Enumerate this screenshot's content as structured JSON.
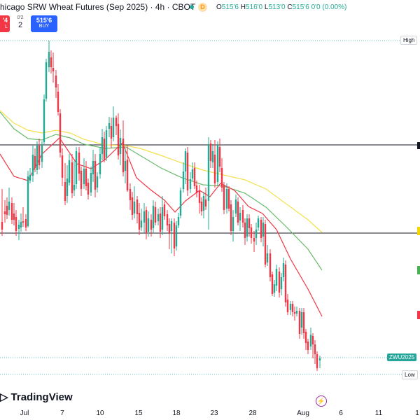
{
  "header": {
    "title": "hicago SRW Wheat Futures (Sep 2025) · 4h · CBOT",
    "d_badge": "D",
    "ohlc": {
      "o_label": "O",
      "o_value": "515'6",
      "h_label": "H",
      "h_value": "516'0",
      "l_label": "L",
      "l_value": "513'0",
      "c_label": "C",
      "c_value": "515'6",
      "change": "0'0 (0.00%)"
    }
  },
  "trade": {
    "sell_price": "'4",
    "sell_label": "L",
    "spread_top": "0'2",
    "spread_value": "2",
    "buy_price": "515'6",
    "buy_label": "BUY"
  },
  "price_labels": {
    "high": "High",
    "symbol": "ZWU2025",
    "low": "Low"
  },
  "logo": {
    "text": "TradingView"
  },
  "colors": {
    "up": "#22ab94",
    "down": "#f23645",
    "ma_red": "#f23645",
    "ma_green": "#66bb6a",
    "ma_yellow": "#f4e04d",
    "level_line": "#131722",
    "dotted": "#26a69a"
  },
  "icons": {
    "event": "lightning-icon"
  },
  "time_axis": {
    "ticks": [
      "Jul",
      "7",
      "10",
      "15",
      "18",
      "23",
      "28",
      "Aug",
      "6",
      "11",
      "1"
    ]
  },
  "chart_data": {
    "type": "candlestick",
    "ma_slow": [
      [
        0,
        158
      ],
      [
        20,
        176
      ],
      [
        40,
        186
      ],
      [
        60,
        190
      ],
      [
        80,
        186
      ],
      [
        100,
        190
      ],
      [
        120,
        199
      ],
      [
        150,
        207
      ],
      [
        180,
        208
      ],
      [
        200,
        212
      ],
      [
        230,
        222
      ],
      [
        260,
        233
      ],
      [
        290,
        243
      ],
      [
        320,
        250
      ],
      [
        350,
        257
      ],
      [
        380,
        270
      ],
      [
        410,
        292
      ],
      [
        440,
        314
      ],
      [
        460,
        332
      ]
    ],
    "ma_mid": [
      [
        0,
        160
      ],
      [
        20,
        184
      ],
      [
        40,
        198
      ],
      [
        60,
        200
      ],
      [
        80,
        192
      ],
      [
        100,
        197
      ],
      [
        120,
        206
      ],
      [
        150,
        212
      ],
      [
        180,
        210
      ],
      [
        200,
        222
      ],
      [
        230,
        240
      ],
      [
        260,
        254
      ],
      [
        290,
        264
      ],
      [
        320,
        266
      ],
      [
        350,
        276
      ],
      [
        380,
        296
      ],
      [
        410,
        325
      ],
      [
        440,
        356
      ],
      [
        460,
        386
      ]
    ],
    "ma_fast": [
      [
        0,
        220
      ],
      [
        20,
        252
      ],
      [
        40,
        258
      ],
      [
        60,
        220
      ],
      [
        85,
        197
      ],
      [
        110,
        234
      ],
      [
        130,
        241
      ],
      [
        150,
        228
      ],
      [
        175,
        204
      ],
      [
        195,
        254
      ],
      [
        215,
        271
      ],
      [
        235,
        286
      ],
      [
        250,
        303
      ],
      [
        265,
        287
      ],
      [
        285,
        272
      ],
      [
        300,
        281
      ],
      [
        315,
        262
      ],
      [
        335,
        272
      ],
      [
        355,
        295
      ],
      [
        375,
        305
      ],
      [
        395,
        328
      ],
      [
        415,
        370
      ],
      [
        440,
        413
      ],
      [
        460,
        452
      ]
    ],
    "candles": [
      [
        3,
        317,
        328,
        270,
        337
      ],
      [
        7,
        302,
        306,
        286,
        318
      ],
      [
        10,
        294,
        307,
        282,
        313
      ],
      [
        13,
        300,
        288,
        268,
        308
      ],
      [
        17,
        290,
        314,
        282,
        320
      ],
      [
        20,
        305,
        314,
        290,
        322
      ],
      [
        23,
        310,
        330,
        300,
        337
      ],
      [
        27,
        327,
        321,
        314,
        343
      ],
      [
        30,
        325,
        317,
        305,
        331
      ],
      [
        33,
        316,
        318,
        296,
        324
      ],
      [
        37,
        313,
        325,
        306,
        330
      ],
      [
        40,
        323,
        252,
        244,
        325
      ],
      [
        43,
        258,
        250,
        240,
        262
      ],
      [
        47,
        251,
        221,
        208,
        260
      ],
      [
        50,
        223,
        240,
        212,
        246
      ],
      [
        53,
        243,
        208,
        202,
        249
      ],
      [
        56,
        208,
        236,
        198,
        242
      ],
      [
        60,
        231,
        206,
        202,
        240
      ],
      [
        63,
        203,
        142,
        135,
        206
      ],
      [
        66,
        141,
        89,
        84,
        145
      ],
      [
        70,
        96,
        74,
        58,
        103
      ],
      [
        73,
        82,
        96,
        72,
        105
      ],
      [
        76,
        97,
        102,
        75,
        118
      ],
      [
        80,
        108,
        125,
        100,
        140
      ],
      [
        83,
        131,
        160,
        120,
        165
      ],
      [
        86,
        162,
        218,
        156,
        225
      ],
      [
        89,
        222,
        254,
        212,
        266
      ],
      [
        93,
        260,
        287,
        233,
        293
      ],
      [
        96,
        280,
        255,
        236,
        290
      ],
      [
        99,
        261,
        229,
        220,
        265
      ],
      [
        103,
        232,
        276,
        220,
        283
      ],
      [
        106,
        272,
        264,
        230,
        280
      ],
      [
        109,
        263,
        216,
        210,
        270
      ],
      [
        113,
        218,
        248,
        210,
        258
      ],
      [
        116,
        244,
        270,
        238,
        280
      ],
      [
        120,
        263,
        241,
        226,
        270
      ],
      [
        123,
        241,
        266,
        230,
        272
      ],
      [
        126,
        261,
        278,
        255,
        285
      ],
      [
        130,
        275,
        247,
        238,
        280
      ],
      [
        133,
        249,
        230,
        214,
        260
      ],
      [
        136,
        230,
        271,
        220,
        282
      ],
      [
        139,
        268,
        252,
        246,
        275
      ],
      [
        143,
        249,
        220,
        210,
        255
      ],
      [
        146,
        220,
        196,
        184,
        229
      ],
      [
        149,
        198,
        228,
        188,
        232
      ],
      [
        152,
        225,
        186,
        180,
        230
      ],
      [
        156,
        184,
        176,
        167,
        196
      ],
      [
        159,
        180,
        198,
        168,
        212
      ],
      [
        162,
        196,
        168,
        152,
        202
      ],
      [
        166,
        168,
        180,
        165,
        193
      ],
      [
        169,
        177,
        222,
        162,
        228
      ],
      [
        172,
        220,
        197,
        185,
        236
      ],
      [
        176,
        198,
        246,
        172,
        252
      ],
      [
        179,
        244,
        230,
        212,
        262
      ],
      [
        182,
        228,
        272,
        208,
        274
      ],
      [
        186,
        270,
        286,
        262,
        300
      ],
      [
        189,
        282,
        307,
        274,
        314
      ],
      [
        192,
        305,
        288,
        266,
        312
      ],
      [
        196,
        285,
        306,
        280,
        319
      ],
      [
        199,
        304,
        328,
        290,
        336
      ],
      [
        202,
        325,
        315,
        298,
        330
      ],
      [
        206,
        318,
        302,
        290,
        333
      ],
      [
        209,
        300,
        333,
        295,
        342
      ],
      [
        212,
        331,
        312,
        302,
        338
      ],
      [
        216,
        314,
        328,
        306,
        338
      ],
      [
        219,
        326,
        294,
        286,
        332
      ],
      [
        222,
        296,
        318,
        288,
        322
      ],
      [
        226,
        316,
        306,
        298,
        322
      ],
      [
        229,
        305,
        331,
        296,
        340
      ],
      [
        232,
        328,
        296,
        280,
        336
      ],
      [
        235,
        292,
        309,
        288,
        314
      ],
      [
        239,
        306,
        322,
        300,
        330
      ],
      [
        242,
        320,
        334,
        312,
        356
      ],
      [
        245,
        330,
        316,
        312,
        362
      ],
      [
        249,
        318,
        355,
        312,
        366
      ],
      [
        252,
        352,
        322,
        316,
        358
      ],
      [
        255,
        322,
        310,
        304,
        326
      ],
      [
        258,
        308,
        272,
        268,
        312
      ],
      [
        262,
        270,
        245,
        232,
        275
      ],
      [
        265,
        245,
        216,
        212,
        263
      ],
      [
        268,
        218,
        272,
        210,
        280
      ],
      [
        272,
        270,
        256,
        246,
        276
      ],
      [
        275,
        255,
        242,
        232,
        258
      ],
      [
        278,
        240,
        266,
        232,
        270
      ],
      [
        281,
        265,
        276,
        258,
        282
      ],
      [
        285,
        272,
        290,
        264,
        305
      ],
      [
        288,
        288,
        302,
        282,
        308
      ],
      [
        291,
        301,
        280,
        274,
        312
      ],
      [
        294,
        285,
        295,
        268,
        300
      ],
      [
        298,
        287,
        206,
        196,
        328
      ],
      [
        301,
        205,
        230,
        200,
        240
      ],
      [
        304,
        232,
        216,
        206,
        240
      ],
      [
        307,
        221,
        262,
        200,
        268
      ],
      [
        311,
        260,
        207,
        202,
        266
      ],
      [
        314,
        210,
        238,
        198,
        246
      ],
      [
        317,
        240,
        268,
        226,
        274
      ],
      [
        320,
        265,
        300,
        260,
        306
      ],
      [
        324,
        298,
        270,
        262,
        305
      ],
      [
        327,
        270,
        298,
        266,
        302
      ],
      [
        330,
        292,
        330,
        286,
        336
      ],
      [
        333,
        330,
        310,
        300,
        345
      ],
      [
        337,
        305,
        285,
        278,
        310
      ],
      [
        340,
        288,
        318,
        282,
        322
      ],
      [
        343,
        315,
        304,
        296,
        330
      ],
      [
        347,
        300,
        318,
        293,
        325
      ],
      [
        350,
        318,
        340,
        312,
        350
      ],
      [
        353,
        338,
        312,
        306,
        345
      ],
      [
        356,
        312,
        326,
        306,
        338
      ],
      [
        359,
        325,
        340,
        320,
        348
      ],
      [
        363,
        340,
        345,
        330,
        360
      ],
      [
        366,
        340,
        328,
        318,
        350
      ],
      [
        369,
        325,
        312,
        308,
        330
      ],
      [
        373,
        314,
        340,
        310,
        346
      ],
      [
        376,
        338,
        318,
        310,
        352
      ],
      [
        379,
        320,
        378,
        314,
        382
      ],
      [
        382,
        375,
        362,
        350,
        380
      ],
      [
        386,
        362,
        396,
        356,
        402
      ],
      [
        389,
        392,
        420,
        388,
        423
      ],
      [
        392,
        418,
        406,
        400,
        424
      ],
      [
        395,
        408,
        384,
        378,
        416
      ],
      [
        399,
        388,
        418,
        382,
        425
      ],
      [
        402,
        413,
        396,
        390,
        422
      ],
      [
        405,
        396,
        376,
        368,
        402
      ],
      [
        408,
        378,
        432,
        372,
        438
      ],
      [
        411,
        428,
        446,
        420,
        450
      ],
      [
        415,
        443,
        434,
        430,
        450
      ],
      [
        418,
        434,
        446,
        430,
        452
      ],
      [
        421,
        446,
        448,
        438,
        458
      ],
      [
        424,
        448,
        444,
        438,
        452
      ],
      [
        428,
        444,
        477,
        440,
        484
      ],
      [
        431,
        468,
        446,
        440,
        478
      ],
      [
        434,
        446,
        476,
        440,
        484
      ],
      [
        437,
        474,
        490,
        470,
        500
      ],
      [
        440,
        488,
        500,
        484,
        506
      ],
      [
        444,
        495,
        478,
        468,
        500
      ],
      [
        447,
        480,
        492,
        476,
        512
      ],
      [
        450,
        492,
        506,
        486,
        520
      ],
      [
        453,
        506,
        526,
        502,
        530
      ],
      [
        457,
        515,
        512,
        508,
        526
      ]
    ],
    "levels": [
      207,
      333
    ],
    "dotted_levels": [
      58,
      511,
      535
    ]
  }
}
